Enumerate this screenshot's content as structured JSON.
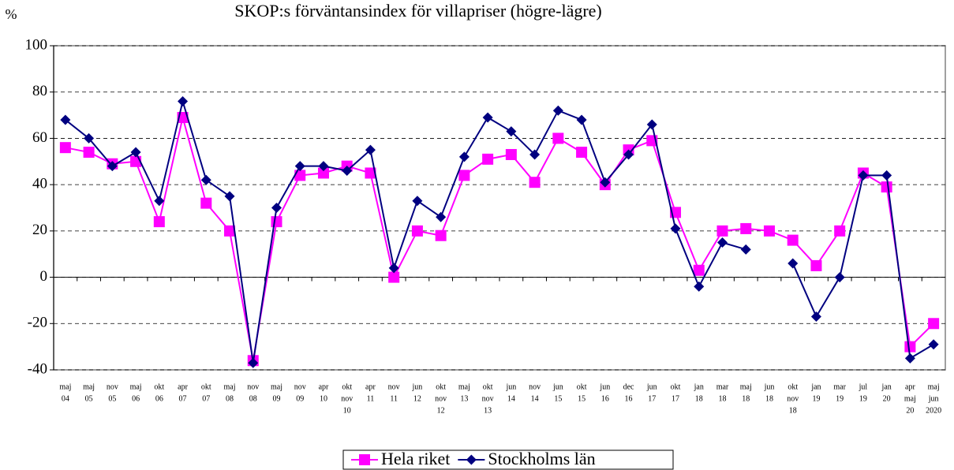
{
  "chart_data": {
    "type": "line",
    "title": "SKOP:s förväntansindex för villapriser (högre-lägre)",
    "y_label": "%",
    "categories": [
      [
        "maj",
        "04"
      ],
      [
        "maj",
        "05"
      ],
      [
        "nov",
        "05"
      ],
      [
        "maj",
        "06"
      ],
      [
        "okt",
        "06"
      ],
      [
        "apr",
        "07"
      ],
      [
        "okt",
        "07"
      ],
      [
        "maj",
        "08"
      ],
      [
        "nov",
        "08"
      ],
      [
        "maj",
        "09"
      ],
      [
        "nov",
        "09"
      ],
      [
        "apr",
        "10"
      ],
      [
        "okt",
        "nov",
        "10"
      ],
      [
        "apr",
        "11"
      ],
      [
        "nov",
        "11"
      ],
      [
        "jun",
        "12"
      ],
      [
        "okt",
        "nov",
        "12"
      ],
      [
        "maj",
        "13"
      ],
      [
        "okt",
        "nov",
        "13"
      ],
      [
        "jun",
        "14"
      ],
      [
        "nov",
        "14"
      ],
      [
        "jun",
        "15"
      ],
      [
        "okt",
        "15"
      ],
      [
        "jun",
        "16"
      ],
      [
        "dec",
        "16"
      ],
      [
        "jun",
        "17"
      ],
      [
        "okt",
        "17"
      ],
      [
        "jan",
        "18"
      ],
      [
        "mar",
        "18"
      ],
      [
        "maj",
        "18"
      ],
      [
        "jun",
        "18"
      ],
      [
        "okt",
        "nov",
        "18"
      ],
      [
        "jan",
        "19"
      ],
      [
        "mar",
        "19"
      ],
      [
        "jul",
        "19"
      ],
      [
        "jan",
        "20"
      ],
      [
        "apr",
        "maj",
        "20"
      ],
      [
        "maj",
        "jun",
        "2020"
      ]
    ],
    "series": [
      {
        "name": "Hela riket",
        "color": "#ff00ff",
        "marker": "square",
        "values": [
          56,
          54,
          49,
          50,
          24,
          69,
          32,
          20,
          -36,
          24,
          44,
          45,
          48,
          45,
          0,
          20,
          18,
          44,
          51,
          53,
          41,
          60,
          54,
          40,
          55,
          59,
          28,
          3,
          20,
          21,
          20,
          16,
          5,
          20,
          45,
          39,
          -30,
          -20
        ]
      },
      {
        "name": "Stockholms län",
        "color": "#000080",
        "marker": "diamond",
        "values": [
          68,
          60,
          48,
          54,
          33,
          76,
          42,
          35,
          -37,
          30,
          48,
          48,
          46,
          55,
          4,
          33,
          26,
          52,
          69,
          63,
          53,
          72,
          68,
          41,
          53,
          66,
          21,
          -4,
          15,
          12,
          null,
          6,
          -17,
          0,
          44,
          44,
          -35,
          -29
        ]
      }
    ],
    "ylim": [
      -40,
      100
    ],
    "yticks": [
      -40,
      -20,
      0,
      20,
      40,
      60,
      80,
      100
    ],
    "grid": true,
    "legend": "bottom"
  }
}
